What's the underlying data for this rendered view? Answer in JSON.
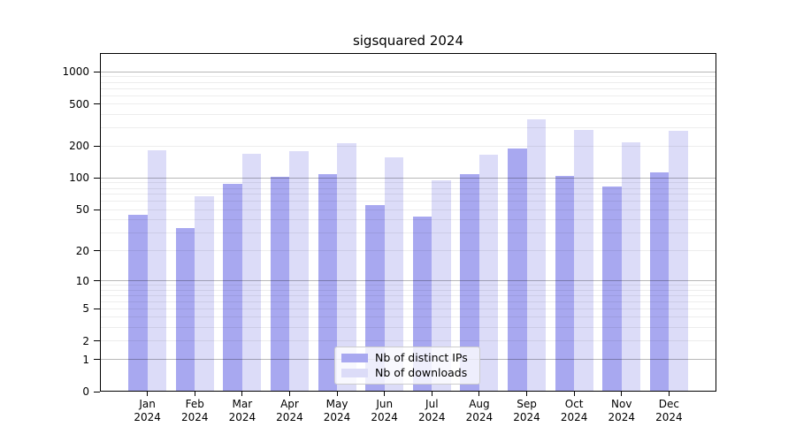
{
  "chart_data": {
    "type": "bar",
    "title": "sigsquared 2024",
    "categories": [
      "Jan 2024",
      "Feb 2024",
      "Mar 2024",
      "Apr 2024",
      "May 2024",
      "Jun 2024",
      "Jul 2024",
      "Aug 2024",
      "Sep 2024",
      "Oct 2024",
      "Nov 2024",
      "Dec 2024"
    ],
    "series": [
      {
        "name": "Nb of distinct IPs",
        "color": "#a8a8f0",
        "values": [
          45,
          33,
          89,
          103,
          108,
          55,
          43,
          109,
          190,
          105,
          83,
          113
        ]
      },
      {
        "name": "Nb of downloads",
        "color": "#dcdcf8",
        "values": [
          185,
          67,
          170,
          179,
          214,
          158,
          95,
          166,
          357,
          287,
          218,
          278
        ]
      }
    ],
    "yscale": "log1p",
    "yticks": [
      0,
      1,
      2,
      5,
      10,
      20,
      50,
      100,
      200,
      500,
      1000
    ],
    "ylim": [
      0,
      1500
    ],
    "xlabel": "",
    "ylabel": "",
    "grid": "horizontal",
    "legend_position": "lower-center-inside",
    "colors": {
      "major_grid": "rgba(0,0,0,0.28)",
      "minor_grid": "rgba(0,0,0,0.07)",
      "spine": "#000000",
      "text": "#000000"
    }
  }
}
